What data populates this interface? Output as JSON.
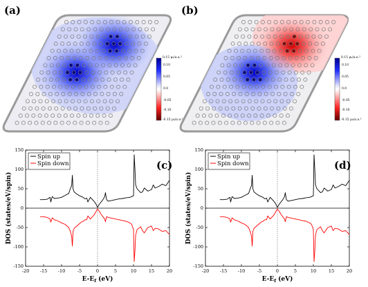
{
  "panels": {
    "a": {
      "label": "(a)",
      "colorbar": {
        "top_label": "0.15 μ₀/a.u.³",
        "ticks": [
          "0.10",
          "0.05",
          "0.0",
          "-0.05",
          "-0.10"
        ],
        "bottom_label": "-0.15 μ₀/a.u.³"
      }
    },
    "b": {
      "label": "(b)",
      "colorbar": {
        "top_label": "0.15 μ₀/a.u.³",
        "ticks": [
          "0.10",
          "0.05",
          "0.0",
          "-0.05",
          "-0.10"
        ],
        "bottom_label": "-0.15 μ₀/a.u.³"
      }
    },
    "c": {
      "label": "(c)"
    },
    "d": {
      "label": "(d)"
    }
  },
  "colors": {
    "spin_up": "#000000",
    "spin_down": "#ff0000",
    "positive": "#1a1aff",
    "negative": "#e00000"
  },
  "chart_data": [
    {
      "type": "line",
      "panel": "c",
      "xlabel": "E-E_f (eV)",
      "ylabel": "DOS (states/eV/spin)",
      "xlim": [
        -20,
        20
      ],
      "ylim": [
        -150,
        150
      ],
      "xticks": [
        -20,
        -15,
        -10,
        -5,
        0,
        5,
        10,
        15,
        20
      ],
      "yticks": [
        -150,
        -100,
        -50,
        0,
        50,
        100,
        150
      ],
      "legend": [
        "Spin up",
        "Spin down"
      ],
      "legend_position": "top-left",
      "series": [
        {
          "name": "Spin up",
          "x": [
            -16,
            -15,
            -14,
            -13.2,
            -13,
            -12.6,
            -12,
            -11,
            -10,
            -9,
            -8,
            -7.5,
            -7.2,
            -7,
            -6.8,
            -6.5,
            -6,
            -5,
            -4.5,
            -4,
            -3.5,
            -3,
            -2.7,
            -2,
            -1,
            -0.5,
            0,
            0.5,
            1,
            1.5,
            2,
            2.2,
            2.5,
            3,
            4,
            5,
            6,
            7,
            8,
            9,
            9.5,
            10,
            10.2,
            10.4,
            10.6,
            11,
            12,
            12.5,
            13,
            14,
            15,
            15.5,
            16,
            17,
            18,
            19,
            20
          ],
          "y": [
            22,
            22,
            23,
            28,
            16,
            30,
            25,
            26,
            28,
            33,
            38,
            52,
            58,
            85,
            50,
            42,
            38,
            32,
            30,
            28,
            24,
            26,
            16,
            28,
            18,
            12,
            2,
            10,
            16,
            22,
            30,
            40,
            22,
            18,
            20,
            22,
            24,
            25,
            27,
            28,
            30,
            32,
            138,
            100,
            60,
            50,
            40,
            42,
            52,
            44,
            48,
            60,
            52,
            56,
            62,
            58,
            72
          ]
        },
        {
          "name": "Spin down",
          "x": [
            -16,
            -15,
            -14,
            -13.2,
            -13,
            -12.6,
            -12,
            -11,
            -10,
            -9,
            -8,
            -7.5,
            -7.2,
            -7,
            -6.8,
            -6.5,
            -6,
            -5,
            -4.5,
            -4,
            -3.5,
            -3,
            -2.7,
            -2,
            -1,
            -0.5,
            0,
            0.5,
            1,
            1.5,
            2,
            2.2,
            2.5,
            3,
            4,
            5,
            6,
            7,
            8,
            9,
            9.5,
            10,
            10.2,
            10.4,
            10.6,
            11,
            12,
            12.5,
            13,
            14,
            15,
            15.5,
            16,
            17,
            18,
            19,
            20
          ],
          "y": [
            -22,
            -22,
            -24,
            -28,
            -36,
            -25,
            -30,
            -33,
            -38,
            -42,
            -50,
            -62,
            -72,
            -98,
            -60,
            -52,
            -48,
            -40,
            -36,
            -34,
            -30,
            -30,
            -20,
            -28,
            -18,
            -10,
            -2,
            -8,
            -16,
            -22,
            -28,
            -35,
            -22,
            -24,
            -26,
            -28,
            -30,
            -32,
            -34,
            -38,
            -42,
            -55,
            -138,
            -110,
            -70,
            -55,
            -48,
            -58,
            -64,
            -50,
            -46,
            -58,
            -52,
            -54,
            -60,
            -58,
            -68
          ]
        }
      ]
    },
    {
      "type": "line",
      "panel": "d",
      "xlabel": "E-E_f (eV)",
      "ylabel": "DOS (states/eV/spin)",
      "xlim": [
        -20,
        20
      ],
      "ylim": [
        -150,
        150
      ],
      "xticks": [
        -20,
        -15,
        -10,
        -5,
        0,
        5,
        10,
        15,
        20
      ],
      "yticks": [
        -150,
        -100,
        -50,
        0,
        50,
        100,
        150
      ],
      "legend": [
        "Spin up",
        "Spin down"
      ],
      "legend_position": "top-left",
      "series": [
        {
          "name": "Spin up",
          "x": [
            -16,
            -15,
            -14,
            -13.2,
            -13,
            -12.6,
            -12,
            -11,
            -10,
            -9,
            -8,
            -7.5,
            -7.2,
            -7,
            -6.8,
            -6.5,
            -6,
            -5,
            -4.5,
            -4,
            -3.5,
            -3,
            -2.7,
            -2,
            -1,
            -0.5,
            0,
            0.5,
            1,
            1.5,
            2,
            2.2,
            2.5,
            3,
            4,
            5,
            6,
            7,
            8,
            9,
            9.5,
            10,
            10.2,
            10.4,
            10.6,
            11,
            12,
            12.5,
            13,
            14,
            15,
            15.5,
            16,
            17,
            18,
            19,
            20
          ],
          "y": [
            22,
            22,
            23,
            28,
            16,
            30,
            25,
            26,
            28,
            33,
            38,
            52,
            58,
            85,
            50,
            42,
            38,
            32,
            30,
            28,
            24,
            26,
            16,
            28,
            18,
            12,
            2,
            10,
            16,
            22,
            30,
            40,
            22,
            18,
            20,
            22,
            24,
            25,
            27,
            28,
            30,
            32,
            138,
            100,
            60,
            50,
            40,
            42,
            52,
            44,
            48,
            60,
            52,
            56,
            62,
            58,
            72
          ]
        },
        {
          "name": "Spin down",
          "x": [
            -16,
            -15,
            -14,
            -13.2,
            -13,
            -12.6,
            -12,
            -11,
            -10,
            -9,
            -8,
            -7.5,
            -7.2,
            -7,
            -6.8,
            -6.5,
            -6,
            -5,
            -4.5,
            -4,
            -3.5,
            -3,
            -2.7,
            -2,
            -1,
            -0.5,
            0,
            0.5,
            1,
            1.5,
            2,
            2.2,
            2.5,
            3,
            4,
            5,
            6,
            7,
            8,
            9,
            9.5,
            10,
            10.2,
            10.4,
            10.6,
            11,
            12,
            12.5,
            13,
            14,
            15,
            15.5,
            16,
            17,
            18,
            19,
            20
          ],
          "y": [
            -22,
            -22,
            -24,
            -28,
            -36,
            -25,
            -30,
            -33,
            -38,
            -42,
            -50,
            -62,
            -72,
            -98,
            -60,
            -52,
            -48,
            -40,
            -36,
            -34,
            -30,
            -30,
            -20,
            -28,
            -18,
            -10,
            -2,
            -8,
            -16,
            -22,
            -28,
            -35,
            -22,
            -24,
            -26,
            -28,
            -30,
            -32,
            -34,
            -38,
            -42,
            -55,
            -138,
            -110,
            -70,
            -55,
            -48,
            -58,
            -64,
            -50,
            -46,
            -58,
            -52,
            -54,
            -60,
            -58,
            -68
          ]
        }
      ]
    }
  ]
}
